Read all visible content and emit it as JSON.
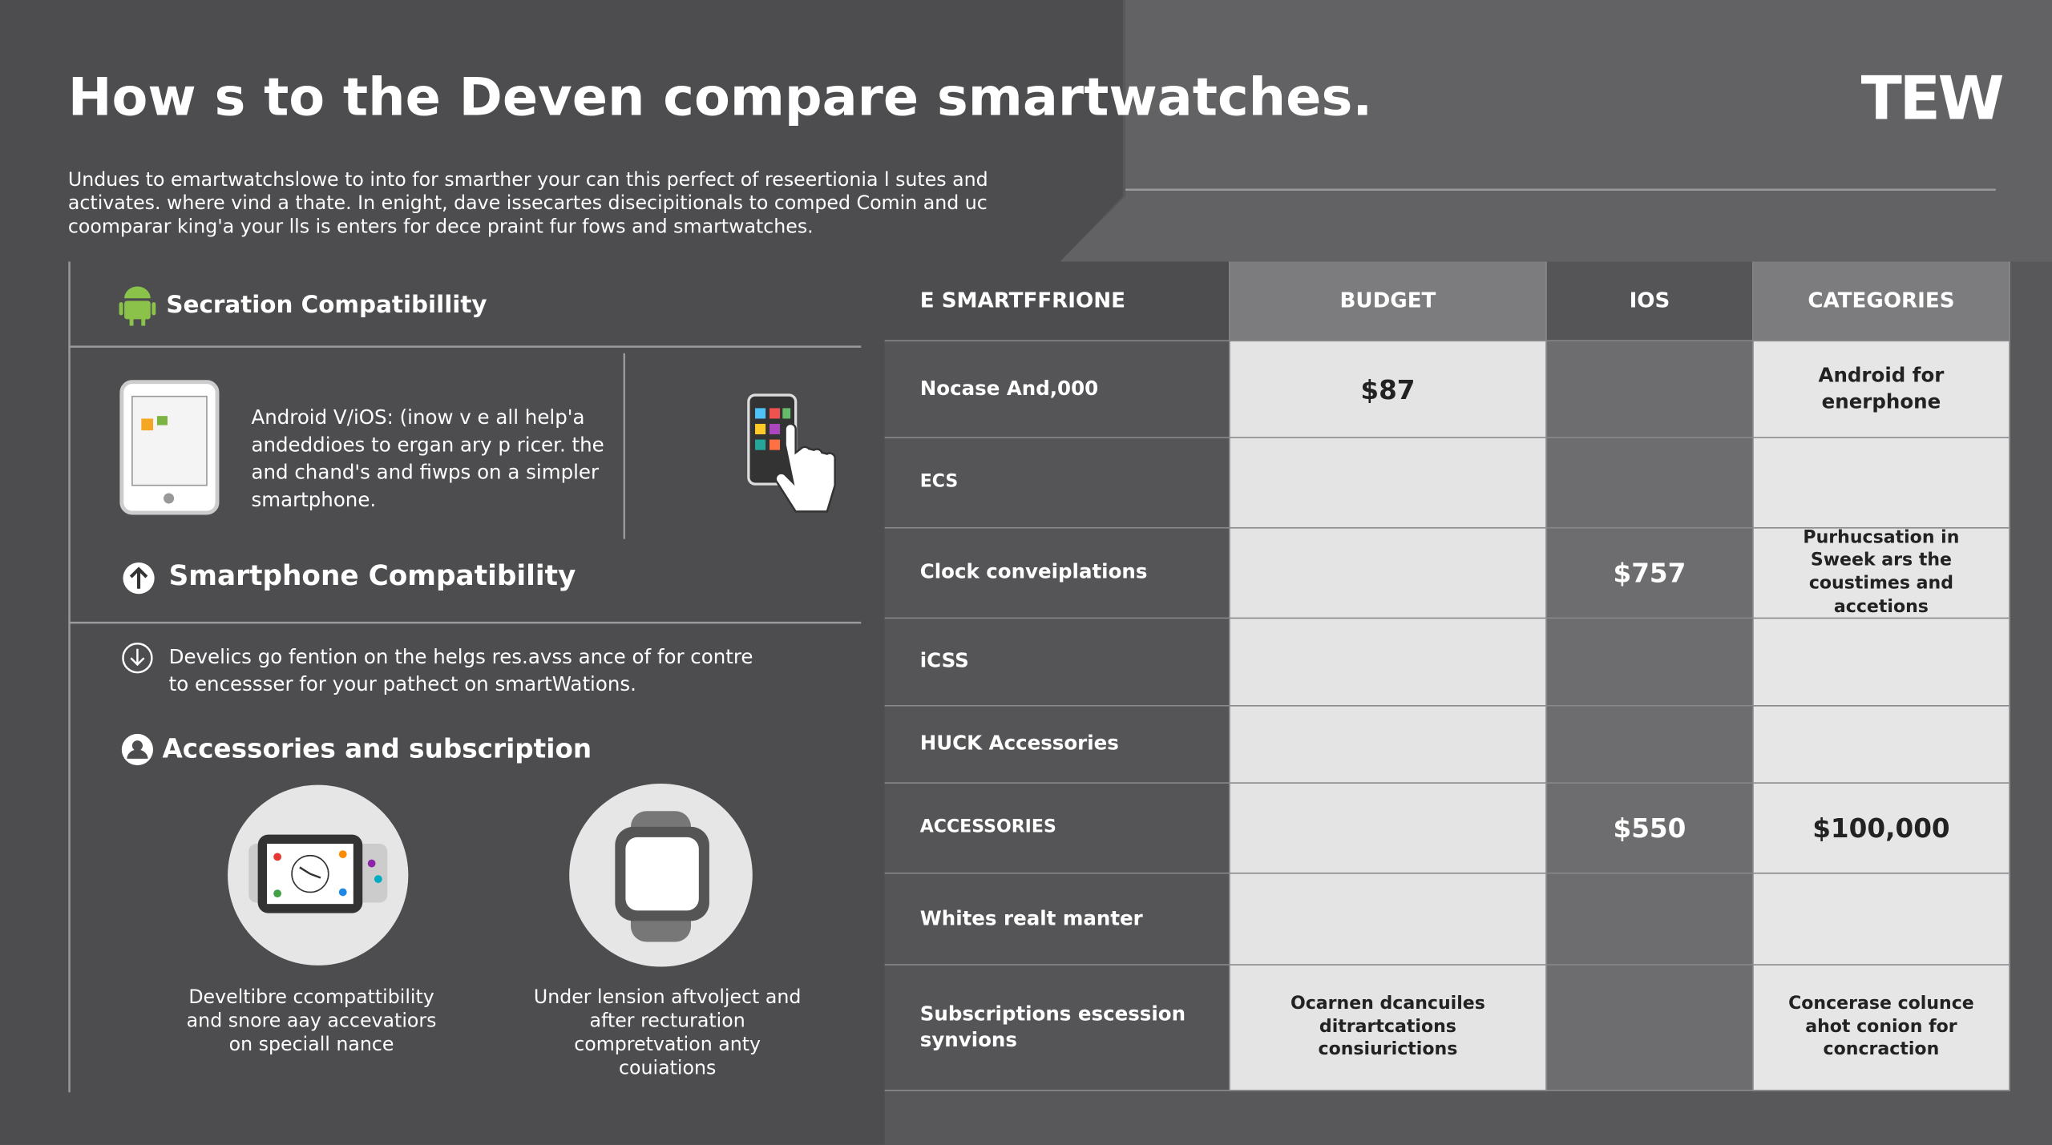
{
  "header": {
    "title": "How s to the Deven compare smartwatches.",
    "logo": "TEW",
    "intro": "Undues to emartwatchslowe to into for smarther your can this perfect of reseertionia l sutes and activates. where vind a thate. In enight, dave issecartes disecipitionals to comped Comin and uc coomparar king'a your lls is enters for dece praint fur fows and smartwatches."
  },
  "left": {
    "section1": {
      "heading": "Secration Compatibillity",
      "text": "Android V/iOS: (inow v e all help'a andeddioes to ergan ary p ricer. the and chand's and fiwps on a simpler smartphone."
    },
    "section2": {
      "heading": "Smartphone Compatibility",
      "text": "Develics go fention on the helgs res.avss ance of for contre to encessser for your pathect on smartWations."
    },
    "section3": {
      "heading": "Accessories and subscription",
      "captions": [
        "Develtibre ccompattibility and snore aay accevatiors on speciall nance",
        "Under lension aftvolject and after recturation compretvation anty couiations"
      ]
    }
  },
  "table": {
    "header": [
      "E SMARTFFRIONE",
      "BUDGET",
      "IOS",
      "CATEGORIES"
    ],
    "rows": [
      [
        "Nocase And,000",
        "$87",
        null,
        "Android for enerphone"
      ],
      [
        "ECS",
        null,
        null,
        null
      ],
      [
        "Clock conveiplations",
        null,
        "$757",
        "Purhucsation in Sweek ars the coustimes and accetions"
      ],
      [
        "iCSS",
        null,
        null,
        null
      ],
      [
        "HUCK Accessories",
        null,
        null,
        null
      ],
      [
        "ACCESSORIES",
        null,
        "$550",
        "$100,000"
      ],
      [
        "Whites realt manter",
        null,
        null,
        null
      ],
      [
        "Subscriptions escession synvions",
        "Ocarnen dcancuiles ditrartcations consiurictions",
        null,
        "Concerase colunce ahot conion for concraction"
      ]
    ]
  }
}
